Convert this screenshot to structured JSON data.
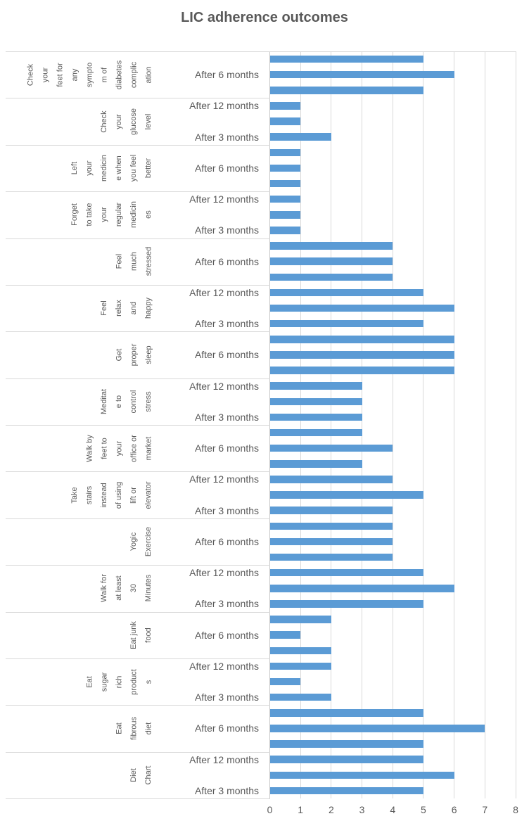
{
  "title": "LIC adherence outcomes",
  "colors": {
    "bar": "#5B9BD5",
    "gridline": "#D9D9D9",
    "separator": "#D9D9D9",
    "text": "#595959"
  },
  "chart_data": {
    "type": "bar",
    "orientation": "horizontal",
    "title": "LIC adherence outcomes",
    "legend": "none",
    "grid": "vertical-only",
    "xlim": [
      0,
      8
    ],
    "x_ticks": [
      "0",
      "1",
      "2",
      "3",
      "4",
      "5",
      "6",
      "7",
      "8"
    ],
    "time_points": [
      "After 3 months",
      "After 6 months",
      "After 12 months"
    ],
    "bar_order_top_to_bottom": [
      "after_12_months",
      "after_6_months",
      "after_3_months"
    ],
    "categories": [
      {
        "label": "Check your feet for any symptom of diabetes complication",
        "label_lines": [
          "Check",
          "your",
          "feet for",
          "any",
          "sympto",
          "m of",
          "diabetes",
          "complic",
          "ation"
        ],
        "values": {
          "after_3_months": 5,
          "after_6_months": 6,
          "after_12_months": 5
        },
        "tick_labels": [
          "",
          "After 6 months",
          ""
        ]
      },
      {
        "label": "Check your glucose level",
        "label_lines": [
          "Check",
          "your",
          "glucose",
          "level"
        ],
        "values": {
          "after_3_months": 2,
          "after_6_months": 1,
          "after_12_months": 1
        },
        "tick_labels": [
          "After 12 months",
          "",
          "After 3 months"
        ]
      },
      {
        "label": "Left your medicine when you feel better",
        "label_lines": [
          "Left",
          "your",
          "medicin",
          "e when",
          "you feel",
          "better"
        ],
        "values": {
          "after_3_months": 1,
          "after_6_months": 1,
          "after_12_months": 1
        },
        "tick_labels": [
          "",
          "After 6 months",
          ""
        ]
      },
      {
        "label": "Forget to take your regular medicines",
        "label_lines": [
          "Forget",
          "to take",
          "your",
          "regular",
          "medicin",
          "es"
        ],
        "values": {
          "after_3_months": 1,
          "after_6_months": 1,
          "after_12_months": 1
        },
        "tick_labels": [
          "After 12 months",
          "",
          "After 3 months"
        ]
      },
      {
        "label": "Feel much stressed",
        "label_lines": [
          "Feel",
          "much",
          "stressed"
        ],
        "values": {
          "after_3_months": 4,
          "after_6_months": 4,
          "after_12_months": 4
        },
        "tick_labels": [
          "",
          "After 6 months",
          ""
        ]
      },
      {
        "label": "Feel relax and happy",
        "label_lines": [
          "Feel",
          "relax",
          "and",
          "happy"
        ],
        "values": {
          "after_3_months": 5,
          "after_6_months": 6,
          "after_12_months": 5
        },
        "tick_labels": [
          "After 12 months",
          "",
          "After 3 months"
        ]
      },
      {
        "label": "Get proper sleep",
        "label_lines": [
          "Get",
          "proper",
          "sleep"
        ],
        "values": {
          "after_3_months": 6,
          "after_6_months": 6,
          "after_12_months": 6
        },
        "tick_labels": [
          "",
          "After 6 months",
          ""
        ]
      },
      {
        "label": "Meditate to control stress",
        "label_lines": [
          "Meditat",
          "e to",
          "control",
          "stress"
        ],
        "values": {
          "after_3_months": 3,
          "after_6_months": 3,
          "after_12_months": 3
        },
        "tick_labels": [
          "After 12 months",
          "",
          "After 3 months"
        ]
      },
      {
        "label": "Walk by feet to your office or market",
        "label_lines": [
          "Walk by",
          "feet to",
          "your",
          "office or",
          "market"
        ],
        "values": {
          "after_3_months": 3,
          "after_6_months": 4,
          "after_12_months": 3
        },
        "tick_labels": [
          "",
          "After 6 months",
          ""
        ]
      },
      {
        "label": "Take stairs instead of using lift or elevator",
        "label_lines": [
          "Take",
          "stairs",
          "instead",
          "of using",
          "lift or",
          "elevator"
        ],
        "values": {
          "after_3_months": 4,
          "after_6_months": 5,
          "after_12_months": 4
        },
        "tick_labels": [
          "After 12 months",
          "",
          "After 3 months"
        ]
      },
      {
        "label": "Yogic Exercise",
        "label_lines": [
          "Yogic",
          "Exercise"
        ],
        "values": {
          "after_3_months": 4,
          "after_6_months": 4,
          "after_12_months": 4
        },
        "tick_labels": [
          "",
          "After 6 months",
          ""
        ]
      },
      {
        "label": "Walk for at least 30 Minutes",
        "label_lines": [
          "Walk for",
          "at least",
          "30",
          "Minutes"
        ],
        "values": {
          "after_3_months": 5,
          "after_6_months": 6,
          "after_12_months": 5
        },
        "tick_labels": [
          "After 12 months",
          "",
          "After 3 months"
        ]
      },
      {
        "label": "Eat junk food",
        "label_lines": [
          "Eat junk",
          "food"
        ],
        "values": {
          "after_3_months": 2,
          "after_6_months": 1,
          "after_12_months": 2
        },
        "tick_labels": [
          "",
          "After 6 months",
          ""
        ]
      },
      {
        "label": "Eat sugar rich products",
        "label_lines": [
          "Eat",
          "sugar",
          "rich",
          "product",
          "s"
        ],
        "values": {
          "after_3_months": 2,
          "after_6_months": 1,
          "after_12_months": 2
        },
        "tick_labels": [
          "After 12 months",
          "",
          "After 3 months"
        ]
      },
      {
        "label": "Eat fibrous diet",
        "label_lines": [
          "Eat",
          "fibrous",
          "diet"
        ],
        "values": {
          "after_3_months": 5,
          "after_6_months": 7,
          "after_12_months": 5
        },
        "tick_labels": [
          "",
          "After 6 months",
          ""
        ]
      },
      {
        "label": "Diet Chart",
        "label_lines": [
          "Diet",
          "Chart"
        ],
        "values": {
          "after_3_months": 5,
          "after_6_months": 6,
          "after_12_months": 5
        },
        "tick_labels": [
          "After 12 months",
          "",
          "After 3 months"
        ]
      }
    ]
  }
}
